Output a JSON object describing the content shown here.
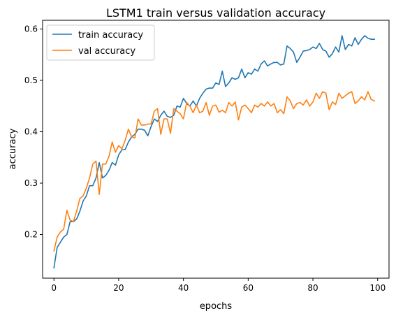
{
  "chart_data": {
    "type": "line",
    "title": "LSTM1 train versus validation accuracy",
    "xlabel": "epochs",
    "ylabel": "accuracy",
    "xlim": [
      -3.5,
      103.5
    ],
    "ylim": [
      0.115,
      0.617
    ],
    "xticks": [
      0,
      20,
      40,
      60,
      80,
      100
    ],
    "yticks": [
      0.2,
      0.3,
      0.4,
      0.5,
      0.6
    ],
    "ytick_labels": [
      "0.2",
      "0.3",
      "0.4",
      "0.5",
      "0.6"
    ],
    "grid": false,
    "legend_position": "top-left",
    "series": [
      {
        "name": "train accuracy",
        "color": "#1f77b4",
        "x": [
          0,
          1,
          2,
          3,
          4,
          5,
          6,
          7,
          8,
          9,
          10,
          11,
          12,
          13,
          14,
          15,
          16,
          17,
          18,
          19,
          20,
          21,
          22,
          23,
          24,
          25,
          26,
          27,
          28,
          29,
          30,
          31,
          32,
          33,
          34,
          35,
          36,
          37,
          38,
          39,
          40,
          41,
          42,
          43,
          44,
          45,
          46,
          47,
          48,
          49,
          50,
          51,
          52,
          53,
          54,
          55,
          56,
          57,
          58,
          59,
          60,
          61,
          62,
          63,
          64,
          65,
          66,
          67,
          68,
          69,
          70,
          71,
          72,
          73,
          74,
          75,
          76,
          77,
          78,
          79,
          80,
          81,
          82,
          83,
          84,
          85,
          86,
          87,
          88,
          89,
          90,
          91,
          92,
          93,
          94,
          95,
          96,
          97,
          98,
          99
        ],
        "values": [
          0.135,
          0.175,
          0.185,
          0.195,
          0.2,
          0.225,
          0.225,
          0.23,
          0.245,
          0.265,
          0.275,
          0.295,
          0.295,
          0.31,
          0.34,
          0.31,
          0.315,
          0.325,
          0.34,
          0.335,
          0.355,
          0.365,
          0.365,
          0.38,
          0.39,
          0.395,
          0.405,
          0.405,
          0.403,
          0.392,
          0.41,
          0.425,
          0.42,
          0.432,
          0.44,
          0.43,
          0.428,
          0.432,
          0.45,
          0.448,
          0.465,
          0.455,
          0.45,
          0.46,
          0.45,
          0.465,
          0.475,
          0.483,
          0.485,
          0.485,
          0.495,
          0.492,
          0.518,
          0.488,
          0.495,
          0.505,
          0.502,
          0.505,
          0.522,
          0.505,
          0.515,
          0.512,
          0.522,
          0.518,
          0.532,
          0.538,
          0.528,
          0.532,
          0.535,
          0.535,
          0.53,
          0.532,
          0.567,
          0.562,
          0.555,
          0.535,
          0.545,
          0.557,
          0.558,
          0.56,
          0.565,
          0.562,
          0.572,
          0.56,
          0.557,
          0.545,
          0.552,
          0.565,
          0.555,
          0.587,
          0.56,
          0.57,
          0.567,
          0.583,
          0.57,
          0.58,
          0.587,
          0.582,
          0.58,
          0.58
        ]
      },
      {
        "name": "val accuracy",
        "color": "#ff7f0e",
        "x": [
          0,
          1,
          2,
          3,
          4,
          5,
          6,
          7,
          8,
          9,
          10,
          11,
          12,
          13,
          14,
          15,
          16,
          17,
          18,
          19,
          20,
          21,
          22,
          23,
          24,
          25,
          26,
          27,
          28,
          29,
          30,
          31,
          32,
          33,
          34,
          35,
          36,
          37,
          38,
          39,
          40,
          41,
          42,
          43,
          44,
          45,
          46,
          47,
          48,
          49,
          50,
          51,
          52,
          53,
          54,
          55,
          56,
          57,
          58,
          59,
          60,
          61,
          62,
          63,
          64,
          65,
          66,
          67,
          68,
          69,
          70,
          71,
          72,
          73,
          74,
          75,
          76,
          77,
          78,
          79,
          80,
          81,
          82,
          83,
          84,
          85,
          86,
          87,
          88,
          89,
          90,
          91,
          92,
          93,
          94,
          95,
          96,
          97,
          98,
          99
        ],
        "values": [
          0.168,
          0.195,
          0.205,
          0.21,
          0.247,
          0.228,
          0.225,
          0.245,
          0.27,
          0.275,
          0.29,
          0.31,
          0.337,
          0.343,
          0.278,
          0.337,
          0.337,
          0.352,
          0.38,
          0.36,
          0.373,
          0.367,
          0.383,
          0.405,
          0.39,
          0.388,
          0.425,
          0.413,
          0.413,
          0.415,
          0.415,
          0.44,
          0.445,
          0.395,
          0.425,
          0.425,
          0.397,
          0.445,
          0.44,
          0.435,
          0.425,
          0.457,
          0.45,
          0.437,
          0.452,
          0.437,
          0.44,
          0.457,
          0.432,
          0.45,
          0.452,
          0.438,
          0.442,
          0.437,
          0.457,
          0.45,
          0.458,
          0.423,
          0.448,
          0.452,
          0.445,
          0.437,
          0.452,
          0.448,
          0.455,
          0.45,
          0.458,
          0.45,
          0.455,
          0.437,
          0.443,
          0.435,
          0.468,
          0.46,
          0.445,
          0.455,
          0.457,
          0.452,
          0.462,
          0.45,
          0.458,
          0.475,
          0.465,
          0.478,
          0.475,
          0.443,
          0.458,
          0.453,
          0.475,
          0.465,
          0.47,
          0.475,
          0.478,
          0.455,
          0.46,
          0.468,
          0.462,
          0.478,
          0.463,
          0.46
        ]
      }
    ]
  }
}
